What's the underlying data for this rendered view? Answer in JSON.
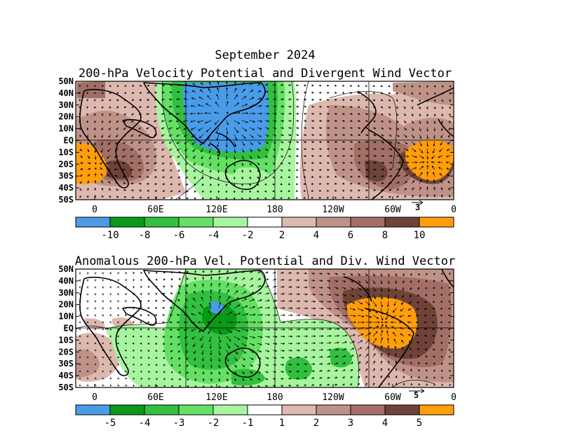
{
  "figure": {
    "title": "September 2024"
  },
  "panels": [
    {
      "id": "top",
      "title": "200-hPa Velocity Potential and Divergent Wind Vector",
      "lat_labels": [
        "50N",
        "40N",
        "30N",
        "20N",
        "10N",
        "EQ",
        "10S",
        "20S",
        "30S",
        "40S",
        "50S"
      ],
      "lon_labels": [
        "0",
        "60E",
        "120E",
        "180",
        "120W",
        "60W",
        "0"
      ],
      "vector_ref": "3",
      "colorbar": {
        "colors": [
          "#4a9be8",
          "#0a9a18",
          "#32c040",
          "#64e064",
          "#a8f5a0",
          "#ffffff",
          "#ddb8ae",
          "#bf9288",
          "#a26f66",
          "#6f4338",
          "#ff9e0a"
        ],
        "labels": [
          "-10",
          "-8",
          "-6",
          "-4",
          "-2",
          "2",
          "4",
          "6",
          "8",
          "10"
        ]
      }
    },
    {
      "id": "bottom",
      "title": "Anomalous 200-hPa Vel. Potential and Div. Wind Vector",
      "lat_labels": [
        "50N",
        "40N",
        "30N",
        "20N",
        "10N",
        "EQ",
        "10S",
        "20S",
        "30S",
        "40S",
        "50S"
      ],
      "lon_labels": [
        "0",
        "60E",
        "120E",
        "180",
        "120W",
        "60W",
        "0"
      ],
      "vector_ref": "5",
      "colorbar": {
        "colors": [
          "#4a9be8",
          "#0a9a18",
          "#32c040",
          "#64e064",
          "#a8f5a0",
          "#ffffff",
          "#ddb8ae",
          "#bf9288",
          "#a26f66",
          "#6f4338",
          "#ff9e0a"
        ],
        "labels": [
          "-5",
          "-4",
          "-3",
          "-2",
          "-1",
          "1",
          "2",
          "3",
          "4",
          "5"
        ]
      }
    }
  ]
}
